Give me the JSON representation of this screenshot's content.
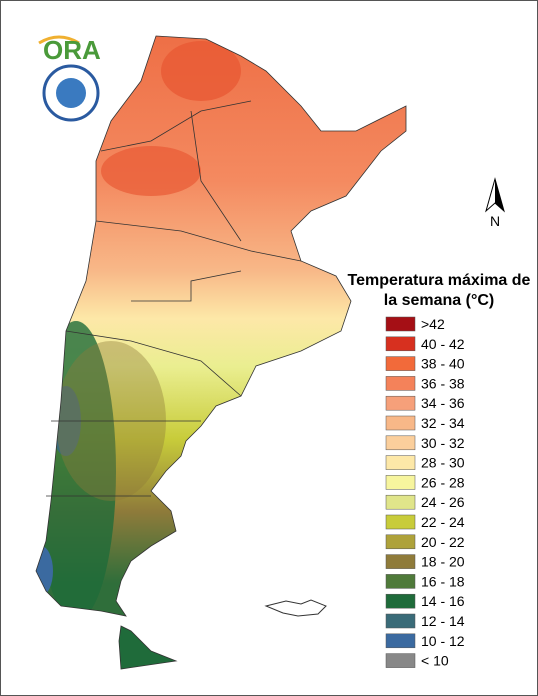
{
  "logo": "ORA",
  "north": "N",
  "legend": {
    "title": "Temperatura máxima de la semana (°C)",
    "items": [
      {
        "label": ">42",
        "color": "#a50f15"
      },
      {
        "label": "40 - 42",
        "color": "#d7301f"
      },
      {
        "label": "38 - 40",
        "color": "#f26a3a"
      },
      {
        "label": "36 - 38",
        "color": "#f4825a"
      },
      {
        "label": "34 - 36",
        "color": "#f6a07a"
      },
      {
        "label": "32 - 34",
        "color": "#f8b888"
      },
      {
        "label": "30 - 32",
        "color": "#fbcf9c"
      },
      {
        "label": "28 - 30",
        "color": "#fde8a8"
      },
      {
        "label": "26 - 28",
        "color": "#f7f59e"
      },
      {
        "label": "24 - 26",
        "color": "#e0e58a"
      },
      {
        "label": "22 - 24",
        "color": "#c8cc3a"
      },
      {
        "label": "20 - 22",
        "color": "#aea23a"
      },
      {
        "label": "18 - 20",
        "color": "#8f7b3a"
      },
      {
        "label": "16 - 18",
        "color": "#4f7a3a"
      },
      {
        "label": "14 - 16",
        "color": "#1f6b3a"
      },
      {
        "label": "12 - 14",
        "color": "#3a6b78"
      },
      {
        "label": "10 - 12",
        "color": "#3b6aa0"
      },
      {
        "label": "< 10",
        "color": "#888888"
      }
    ]
  }
}
